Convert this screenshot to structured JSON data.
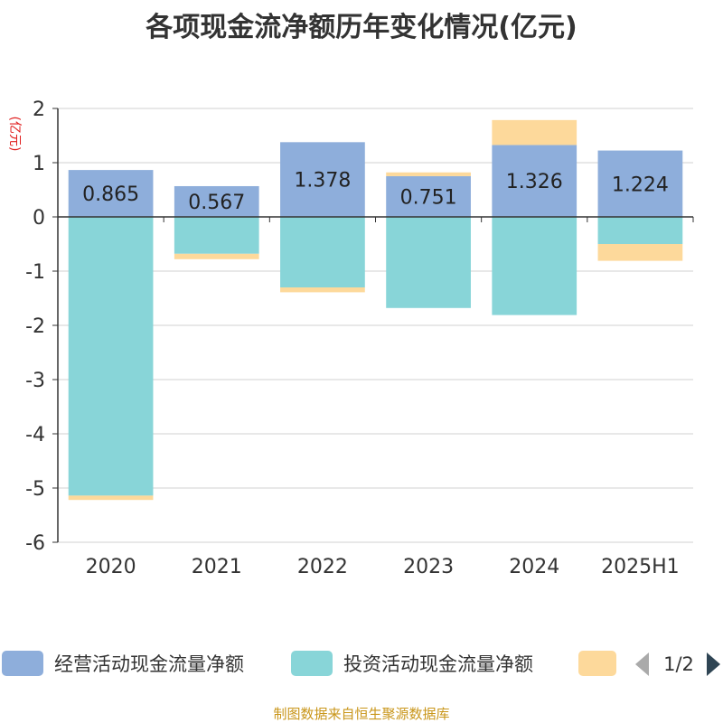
{
  "chart_data": {
    "type": "bar",
    "stacked": true,
    "title": "各项现金流净额历年变化情况(亿元)",
    "ylabel": "(亿元)",
    "xlabel": "",
    "ylim": [
      -6,
      2
    ],
    "yticks": [
      "2",
      "1",
      "0",
      "-1",
      "-2",
      "-3",
      "-4",
      "-5",
      "-6"
    ],
    "grid": true,
    "legend_position": "bottom",
    "categories": [
      "2020",
      "2021",
      "2022",
      "2023",
      "2024",
      "2025H1"
    ],
    "series": [
      {
        "name": "经营活动现金流量净额",
        "color": "#8eaedb",
        "values": [
          0.865,
          0.567,
          1.378,
          0.751,
          1.326,
          1.224
        ]
      },
      {
        "name": "投资活动现金流量净额",
        "color": "#88d5d8",
        "values": [
          -5.14,
          -0.68,
          -1.3,
          -1.68,
          -1.81,
          -0.5
        ]
      },
      {
        "name": "",
        "color": "#fdd99b",
        "values": [
          -0.08,
          -0.1,
          -0.09,
          0.07,
          0.46,
          -0.31
        ]
      }
    ],
    "data_labels": [
      "0.865",
      "0.567",
      "1.378",
      "0.751",
      "1.326",
      "1.224"
    ]
  },
  "legend": {
    "page": "1/2",
    "prev_icon": "triangle-left-icon",
    "next_icon": "triangle-right-icon"
  },
  "footer": {
    "source": "制图数据来自恒生聚源数据库"
  }
}
